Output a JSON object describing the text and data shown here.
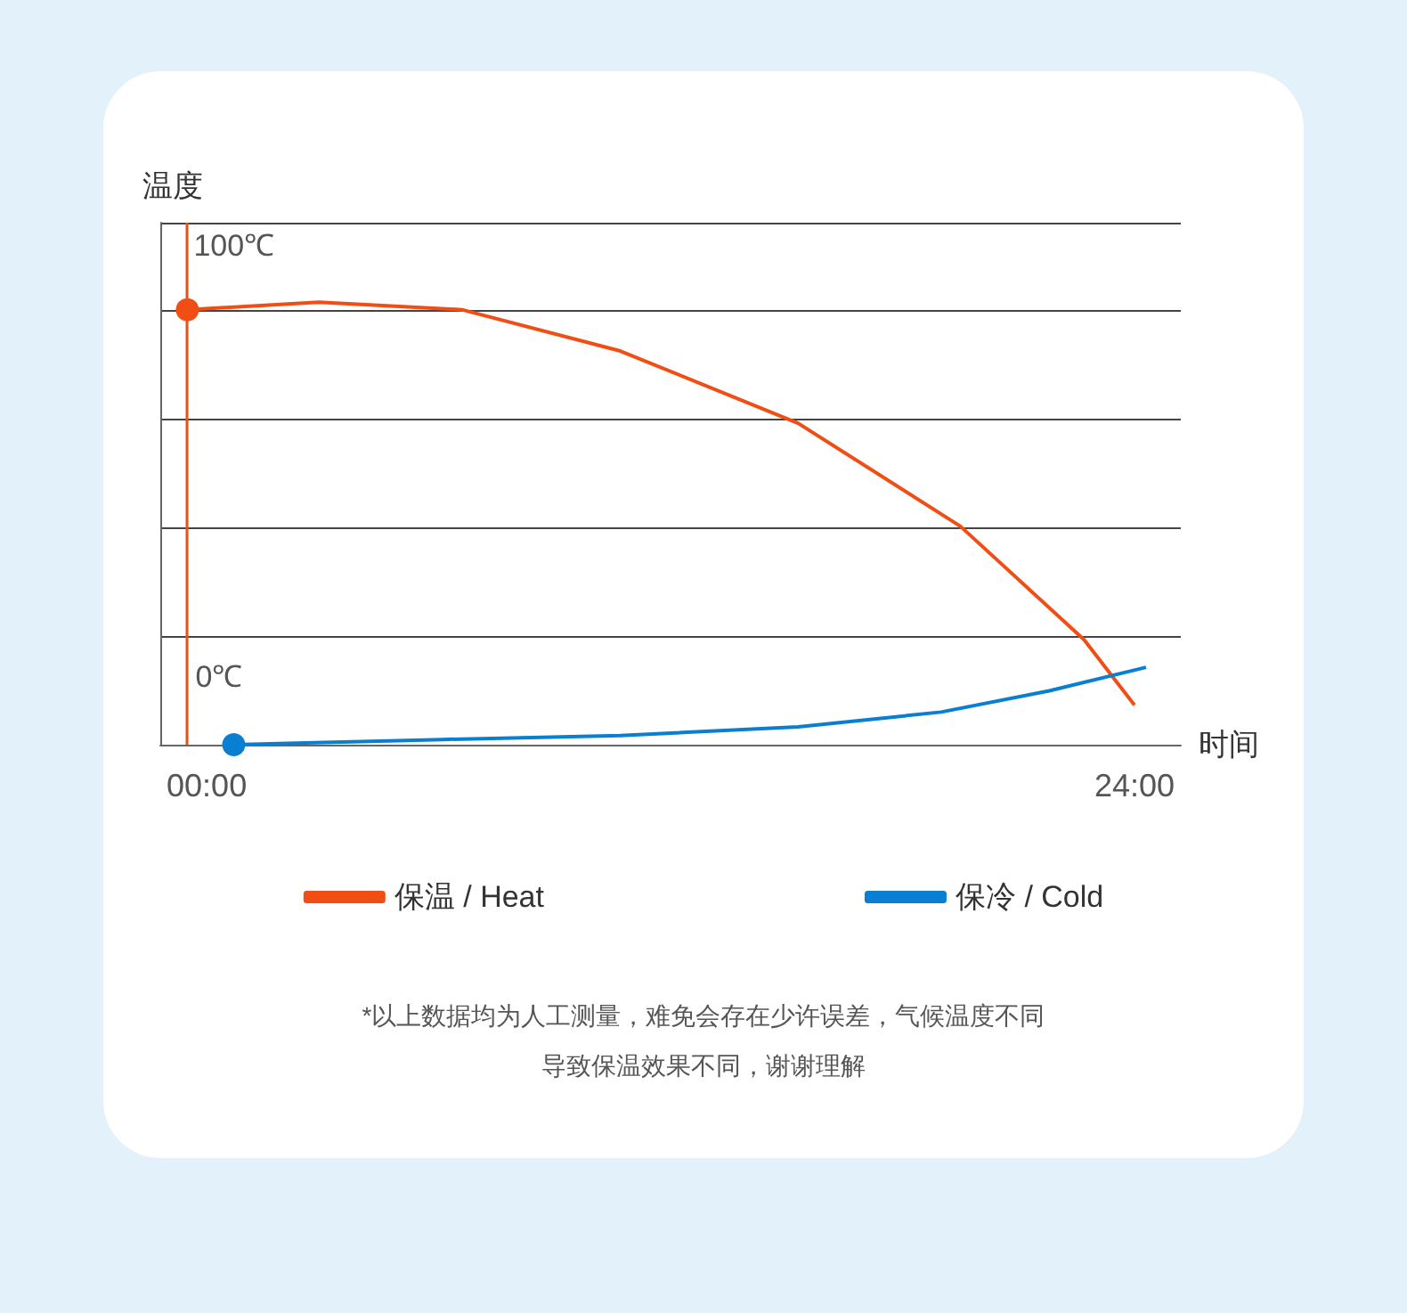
{
  "chart_data": {
    "type": "line",
    "ylabel": "温度",
    "xlabel": "时间",
    "xlim": [
      -1.2,
      25.2
    ],
    "xticks": [
      {
        "value": 0,
        "label": "00:00"
      },
      {
        "value": 24,
        "label": "24:00"
      }
    ],
    "ylim": [
      0,
      120
    ],
    "yticks": [
      {
        "value": 0,
        "label": null
      },
      {
        "value": 25,
        "label": null
      },
      {
        "value": 50,
        "label": null
      },
      {
        "value": 75,
        "label": null
      },
      {
        "value": 100,
        "label": null
      }
    ],
    "grid": "y",
    "tick_labels": "x",
    "legend": "bottom",
    "series": [
      {
        "name": "保温 / Heat",
        "color": "#f04e14",
        "x": [
          -0.5,
          2.9,
          6.6,
          10.7,
          15.3,
          19.5,
          22.7,
          24.0
        ],
        "values": [
          100,
          101.7,
          100,
          90.5,
          73.9,
          50.2,
          24.1,
          9.1
        ],
        "value_labels": [
          "100℃",
          null,
          null,
          null,
          null,
          null,
          null,
          null
        ]
      },
      {
        "name": "保冷 / Cold",
        "color": "#0a7fd2",
        "x": [
          0.7,
          6.1,
          10.7,
          15.3,
          19.0,
          21.8,
          24.3
        ],
        "values": [
          0,
          1.2,
          2.1,
          4.1,
          7.5,
          12.4,
          17.8
        ],
        "value_labels": [
          "0℃",
          null,
          null,
          null,
          null,
          null,
          null
        ]
      }
    ],
    "ref_lines": [
      {
        "axis": "x",
        "value": -0.5,
        "label": null,
        "color": "#f04e14"
      }
    ],
    "annotations": [
      "*以上数据均为人工测量，难免会存在少许误差，气候温度不同",
      "导致保温效果不同，谢谢理解"
    ]
  }
}
